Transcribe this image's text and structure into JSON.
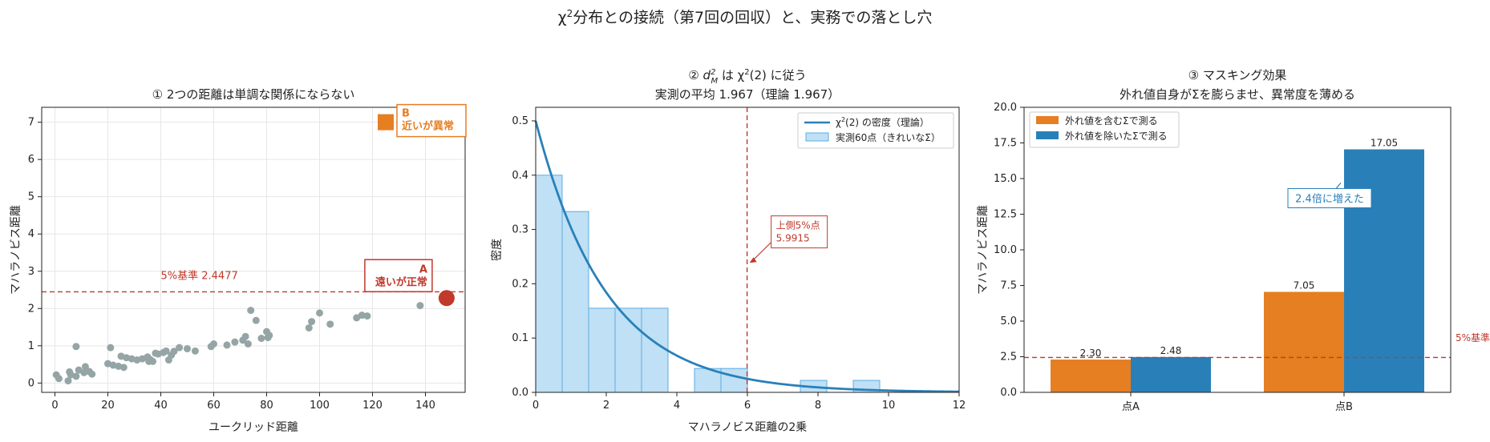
{
  "figure": {
    "title_main": "χ",
    "title_sup": "2",
    "title_rest": "分布との接続（第7回の回収）と、実務での落とし穴"
  },
  "chart_data": [
    {
      "type": "scatter",
      "title": "① 2つの距離は単調な関係にならない",
      "xlabel": "ユークリッド距離",
      "ylabel": "マハラノビス距離",
      "xlim": [
        -5,
        155
      ],
      "ylim": [
        -0.25,
        7.4
      ],
      "xticks": [
        0,
        20,
        40,
        60,
        80,
        100,
        120,
        140
      ],
      "yticks": [
        0,
        1,
        2,
        3,
        4,
        5,
        6,
        7
      ],
      "grid": true,
      "points_color": "#95a5a6",
      "points": [
        [
          0.5,
          0.22
        ],
        [
          1.5,
          0.12
        ],
        [
          5,
          0.06
        ],
        [
          5.5,
          0.3
        ],
        [
          6,
          0.22
        ],
        [
          8,
          0.18
        ],
        [
          8,
          0.98
        ],
        [
          9,
          0.35
        ],
        [
          11,
          0.28
        ],
        [
          11.5,
          0.44
        ],
        [
          13,
          0.31
        ],
        [
          14,
          0.24
        ],
        [
          20,
          0.52
        ],
        [
          21,
          0.95
        ],
        [
          22,
          0.48
        ],
        [
          24,
          0.45
        ],
        [
          25,
          0.72
        ],
        [
          26,
          0.42
        ],
        [
          27,
          0.68
        ],
        [
          29,
          0.65
        ],
        [
          31,
          0.62
        ],
        [
          33,
          0.65
        ],
        [
          35,
          0.7
        ],
        [
          35.5,
          0.58
        ],
        [
          36,
          0.63
        ],
        [
          37,
          0.58
        ],
        [
          38,
          0.8
        ],
        [
          39,
          0.78
        ],
        [
          41,
          0.82
        ],
        [
          42,
          0.86
        ],
        [
          43,
          0.62
        ],
        [
          44,
          0.75
        ],
        [
          45,
          0.85
        ],
        [
          47,
          0.95
        ],
        [
          50,
          0.92
        ],
        [
          53,
          0.86
        ],
        [
          59,
          0.98
        ],
        [
          60,
          1.05
        ],
        [
          65,
          1.02
        ],
        [
          68,
          1.1
        ],
        [
          71,
          1.15
        ],
        [
          72,
          1.25
        ],
        [
          73,
          1.05
        ],
        [
          74,
          1.95
        ],
        [
          76,
          1.68
        ],
        [
          78,
          1.2
        ],
        [
          80,
          1.38
        ],
        [
          80.5,
          1.22
        ],
        [
          81,
          1.28
        ],
        [
          96,
          1.48
        ],
        [
          97,
          1.65
        ],
        [
          100,
          1.88
        ],
        [
          104,
          1.58
        ],
        [
          114,
          1.75
        ],
        [
          116,
          1.82
        ],
        [
          118,
          1.8
        ],
        [
          138,
          2.08
        ]
      ],
      "threshold": {
        "value": 2.4477,
        "label": "5%基準 2.4477",
        "color": "#c0392b"
      },
      "point_a": {
        "x": 148,
        "y": 2.28,
        "letter": "A",
        "label": "遠いが正常",
        "color": "#c0392b"
      },
      "point_b": {
        "x": 125,
        "y": 7.0,
        "letter": "B",
        "label": "近いが異常",
        "color": "#e67e22"
      }
    },
    {
      "type": "histogram+line",
      "title_prefix": "② ",
      "title_var": "d",
      "title_sub": "M",
      "title_sup": "2",
      "title_mid": " は χ",
      "title_mid_sup": "2",
      "title_end": "(2) に従う",
      "subtitle": "実測の平均 1.967（理論 1.967）",
      "xlabel": "マハラノビス距離の2乗",
      "ylabel": "密度",
      "xlim": [
        0,
        12
      ],
      "ylim": [
        0,
        0.525
      ],
      "xticks": [
        0,
        2,
        4,
        6,
        8,
        10,
        12
      ],
      "yticks": [
        0.0,
        0.1,
        0.2,
        0.3,
        0.4,
        0.5
      ],
      "bin_width": 0.75,
      "bins": [
        {
          "x": 0.0,
          "density": 0.4
        },
        {
          "x": 0.75,
          "density": 0.333
        },
        {
          "x": 1.5,
          "density": 0.155
        },
        {
          "x": 2.25,
          "density": 0.155
        },
        {
          "x": 3.0,
          "density": 0.155
        },
        {
          "x": 4.5,
          "density": 0.044
        },
        {
          "x": 5.25,
          "density": 0.044
        },
        {
          "x": 7.5,
          "density": 0.022
        },
        {
          "x": 9.0,
          "density": 0.022
        }
      ],
      "legend": [
        {
          "name": "χ",
          "name_sup": "2",
          "name_rest": "(2) の密度（理論）",
          "kind": "line"
        },
        {
          "name": "実測60点（きれいなΣ）",
          "kind": "patch"
        }
      ],
      "legend_position": "upper right",
      "threshold": {
        "value": 5.9915,
        "label_line1": "上側5%点",
        "label_line2": "5.9915",
        "color": "#c0392b"
      },
      "line_color": "#2980b9",
      "bar_color": "#bfe0f5",
      "bar_edge": "#5dade2"
    },
    {
      "type": "bar",
      "title": "③ マスキング効果",
      "subtitle": "外れ値自身がΣを膨らませ、異常度を薄める",
      "ylabel": "マハラノビス距離",
      "ylim": [
        0,
        20
      ],
      "yticks": [
        "0.0",
        "2.5",
        "5.0",
        "7.5",
        "10.0",
        "12.5",
        "15.0",
        "17.5",
        "20.0"
      ],
      "ytick_values": [
        0,
        2.5,
        5,
        7.5,
        10,
        12.5,
        15,
        17.5,
        20
      ],
      "categories": [
        "点A",
        "点B"
      ],
      "series": [
        {
          "name": "外れ値を含むΣで測る",
          "values": [
            2.3,
            7.05
          ],
          "labels": [
            "2.30",
            "7.05"
          ],
          "color": "#e67e22"
        },
        {
          "name": "外れ値を除いたΣで測る",
          "values": [
            2.48,
            17.05
          ],
          "labels": [
            "2.48",
            "17.05"
          ],
          "color": "#2980b9"
        }
      ],
      "legend_position": "upper left",
      "threshold": {
        "value": 2.4477,
        "label": "5%基準",
        "color": "#c0392b"
      },
      "annotation": {
        "text": "2.4倍に増えた",
        "color": "#2980b9"
      }
    }
  ]
}
